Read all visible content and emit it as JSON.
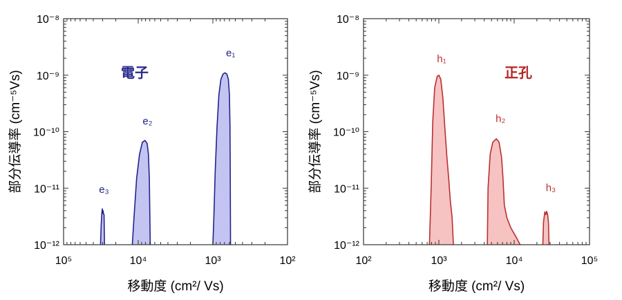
{
  "chart_data": [
    {
      "type": "area",
      "title": "",
      "annotation": "電子",
      "annotation_color": "#2a2a8c",
      "xlabel": "移動度 (cm²/ Vs)",
      "ylabel": "部分伝導率 (cm⁻⁵Vs)",
      "x_scale": "log",
      "x_reversed": true,
      "xlim": [
        100000,
        100
      ],
      "ylim": [
        1e-12,
        1e-08
      ],
      "y_scale": "log",
      "x_tick_labels": [
        "10⁵",
        "10⁴",
        "10³",
        "10²"
      ],
      "y_tick_labels": [
        "10⁻¹²",
        "10⁻¹¹",
        "10⁻¹⁰",
        "10⁻⁹",
        "10⁻⁸"
      ],
      "grid": false,
      "fill_color": "#c4c4f2",
      "line_color": "#22228a",
      "series": [
        {
          "name": "e₁",
          "peak_x": 700,
          "peak_y": 1.1e-09,
          "points": [
            [
              1000,
              1e-12
            ],
            [
              970,
              3e-12
            ],
            [
              930,
              2e-11
            ],
            [
              880,
              1.2e-10
            ],
            [
              830,
              4.5e-10
            ],
            [
              780,
              8.5e-10
            ],
            [
              730,
              1.05e-09
            ],
            [
              690,
              1.1e-09
            ],
            [
              650,
              1.05e-09
            ],
            [
              620,
              8.5e-10
            ],
            [
              600,
              4.5e-10
            ],
            [
              590,
              1.3e-10
            ],
            [
              585,
              2e-11
            ],
            [
              580,
              1e-12
            ]
          ]
        },
        {
          "name": "e₂",
          "peak_x": 8000,
          "peak_y": 7e-11,
          "points": [
            [
              12000,
              1e-12
            ],
            [
              11400,
              3e-12
            ],
            [
              10500,
              1.5e-11
            ],
            [
              9600,
              4e-11
            ],
            [
              8800,
              6.5e-11
            ],
            [
              8100,
              7e-11
            ],
            [
              7600,
              6.2e-11
            ],
            [
              7300,
              4e-11
            ],
            [
              7100,
              1.5e-11
            ],
            [
              7000,
              4e-12
            ],
            [
              6900,
              1e-12
            ]
          ]
        },
        {
          "name": "e₃",
          "peak_x": 30000,
          "peak_y": 4.2e-12,
          "points": [
            [
              32000,
              1e-12
            ],
            [
              31300,
              2.3e-12
            ],
            [
              30700,
              3.6e-12
            ],
            [
              30300,
              4.3e-12
            ],
            [
              30000,
              3.6e-12
            ],
            [
              29600,
              4e-12
            ],
            [
              29200,
              3.5e-12
            ],
            [
              28700,
              3.4e-12
            ],
            [
              28300,
              1e-12
            ]
          ]
        }
      ]
    },
    {
      "type": "area",
      "title": "",
      "annotation": "正孔",
      "annotation_color": "#b52626",
      "xlabel": "移動度 (cm²/ Vs)",
      "ylabel": "部分伝導率 (cm⁻⁵Vs)",
      "x_scale": "log",
      "x_reversed": false,
      "xlim": [
        100,
        100000
      ],
      "ylim": [
        1e-12,
        1e-08
      ],
      "y_scale": "log",
      "x_tick_labels": [
        "10²",
        "10³",
        "10⁴",
        "10⁵"
      ],
      "y_tick_labels": [
        "10⁻¹²",
        "10⁻¹¹",
        "10⁻¹⁰",
        "10⁻⁹",
        "10⁻⁸"
      ],
      "grid": false,
      "fill_color": "#f7c2c2",
      "line_color": "#b83030",
      "series": [
        {
          "name": "h₁",
          "peak_x": 1000,
          "peak_y": 1e-09,
          "points": [
            [
              750,
              1e-12
            ],
            [
              790,
              1e-11
            ],
            [
              830,
              1.5e-10
            ],
            [
              880,
              6e-10
            ],
            [
              950,
              9.5e-10
            ],
            [
              1000,
              1e-09
            ],
            [
              1060,
              8.5e-10
            ],
            [
              1130,
              4e-10
            ],
            [
              1200,
              1.2e-10
            ],
            [
              1280,
              3.5e-11
            ],
            [
              1350,
              1.5e-11
            ],
            [
              1420,
              6e-12
            ],
            [
              1500,
              3e-12
            ],
            [
              1560,
              1e-12
            ]
          ]
        },
        {
          "name": "h₂",
          "peak_x": 5800,
          "peak_y": 7.5e-11,
          "points": [
            [
              4400,
              1e-12
            ],
            [
              4500,
              1e-11
            ],
            [
              4800,
              4e-11
            ],
            [
              5200,
              6.5e-11
            ],
            [
              5800,
              7.5e-11
            ],
            [
              6300,
              6.5e-11
            ],
            [
              6800,
              3.5e-11
            ],
            [
              7100,
              1.5e-11
            ],
            [
              7400,
              5e-12
            ],
            [
              8000,
              3e-12
            ],
            [
              9000,
              2e-12
            ],
            [
              10500,
              1.4e-12
            ],
            [
              12000,
              1e-12
            ]
          ]
        },
        {
          "name": "h₃",
          "peak_x": 27000,
          "peak_y": 3.8e-12,
          "points": [
            [
              24000,
              1e-12
            ],
            [
              24500,
              2.5e-12
            ],
            [
              25500,
              3.8e-12
            ],
            [
              26300,
              3.4e-12
            ],
            [
              27000,
              3.9e-12
            ],
            [
              27800,
              3.4e-12
            ],
            [
              28500,
              2.5e-12
            ],
            [
              29000,
              1e-12
            ]
          ]
        }
      ]
    }
  ]
}
